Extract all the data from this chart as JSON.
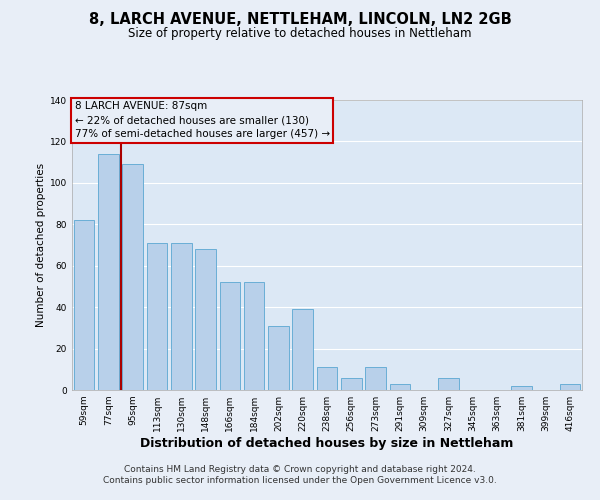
{
  "title": "8, LARCH AVENUE, NETTLEHAM, LINCOLN, LN2 2GB",
  "subtitle": "Size of property relative to detached houses in Nettleham",
  "xlabel": "Distribution of detached houses by size in Nettleham",
  "ylabel": "Number of detached properties",
  "categories": [
    "59sqm",
    "77sqm",
    "95sqm",
    "113sqm",
    "130sqm",
    "148sqm",
    "166sqm",
    "184sqm",
    "202sqm",
    "220sqm",
    "238sqm",
    "256sqm",
    "273sqm",
    "291sqm",
    "309sqm",
    "327sqm",
    "345sqm",
    "363sqm",
    "381sqm",
    "399sqm",
    "416sqm"
  ],
  "values": [
    82,
    114,
    109,
    71,
    71,
    68,
    52,
    52,
    31,
    39,
    11,
    6,
    11,
    3,
    0,
    6,
    0,
    0,
    2,
    0,
    3
  ],
  "bar_color": "#b8d0ea",
  "bar_edge_color": "#6aaed6",
  "vline_index": 1,
  "vline_color": "#aa0000",
  "ylim": [
    0,
    140
  ],
  "yticks": [
    0,
    20,
    40,
    60,
    80,
    100,
    120,
    140
  ],
  "annotation_title": "8 LARCH AVENUE: 87sqm",
  "annotation_line1": "← 22% of detached houses are smaller (130)",
  "annotation_line2": "77% of semi-detached houses are larger (457) →",
  "annotation_box_color": "#cc0000",
  "footer_line1": "Contains HM Land Registry data © Crown copyright and database right 2024.",
  "footer_line2": "Contains public sector information licensed under the Open Government Licence v3.0.",
  "plot_bg_color": "#dce8f5",
  "fig_bg_color": "#e8eef7",
  "footer_bg_color": "#ffffff",
  "grid_color": "#ffffff",
  "title_fontsize": 10.5,
  "subtitle_fontsize": 8.5,
  "xlabel_fontsize": 9,
  "ylabel_fontsize": 7.5,
  "tick_fontsize": 6.5,
  "annotation_fontsize": 7.5,
  "footer_fontsize": 6.5
}
